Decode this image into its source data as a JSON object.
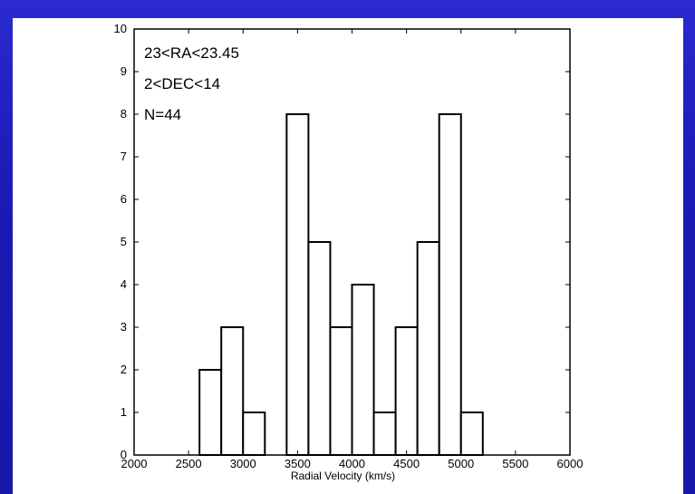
{
  "chart_data": {
    "type": "bar",
    "xlabel": "Radial Velocity (km/s)",
    "ylabel": "",
    "xlim": [
      2000,
      6000
    ],
    "ylim": [
      0,
      10
    ],
    "bin_width": 200,
    "x_ticks": [
      2000,
      2500,
      3000,
      3500,
      4000,
      4500,
      5000,
      5500,
      6000
    ],
    "y_ticks": [
      0,
      1,
      2,
      3,
      4,
      5,
      6,
      7,
      8,
      9,
      10
    ],
    "bins": [
      {
        "start": 2600,
        "end": 2800,
        "count": 2
      },
      {
        "start": 2800,
        "end": 3000,
        "count": 3
      },
      {
        "start": 3000,
        "end": 3200,
        "count": 1
      },
      {
        "start": 3400,
        "end": 3600,
        "count": 8
      },
      {
        "start": 3600,
        "end": 3800,
        "count": 5
      },
      {
        "start": 3800,
        "end": 4000,
        "count": 3
      },
      {
        "start": 4000,
        "end": 4200,
        "count": 4
      },
      {
        "start": 4200,
        "end": 4400,
        "count": 1
      },
      {
        "start": 4400,
        "end": 4600,
        "count": 3
      },
      {
        "start": 4600,
        "end": 4800,
        "count": 5
      },
      {
        "start": 4800,
        "end": 5000,
        "count": 8
      },
      {
        "start": 5000,
        "end": 5200,
        "count": 1
      }
    ],
    "annotations": [
      "23<RA<23.45",
      "2<DEC<14",
      "N=44"
    ],
    "grid": false,
    "bar_fill": "#ffffff",
    "bar_stroke": "#000000"
  }
}
